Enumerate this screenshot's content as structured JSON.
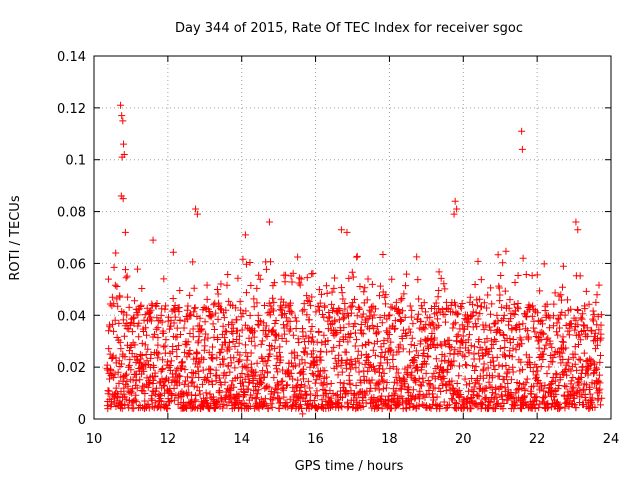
{
  "chart_data": {
    "type": "scatter",
    "title": "Day 344 of 2015, Rate Of TEC Index for receiver sgoc",
    "xlabel": "GPS time / hours",
    "ylabel": "ROTI / TECUs",
    "xlim": [
      10,
      24
    ],
    "ylim": [
      0,
      0.14
    ],
    "grid": true,
    "marker": "+",
    "x_ticks": [
      10,
      12,
      14,
      16,
      18,
      20,
      22,
      24
    ],
    "x_tick_labels": [
      "10",
      "12",
      "14",
      "16",
      "18",
      "20",
      "22",
      "24"
    ],
    "y_ticks": [
      0,
      0.02,
      0.04,
      0.06,
      0.08,
      0.1,
      0.12,
      0.14
    ],
    "y_tick_labels": [
      "0",
      "0.02",
      "0.04",
      "0.06",
      "0.08",
      "0.1",
      "0.12",
      "0.14"
    ],
    "series": [
      {
        "name": "ROTI",
        "color": "#ff0000",
        "x_range": [
          10.35,
          23.75
        ],
        "typical_range": [
          0.004,
          0.045
        ],
        "notable_peaks": [
          {
            "x": 10.72,
            "y": 0.121
          },
          {
            "x": 10.75,
            "y": 0.117
          },
          {
            "x": 10.78,
            "y": 0.115
          },
          {
            "x": 10.8,
            "y": 0.106
          },
          {
            "x": 10.76,
            "y": 0.101
          },
          {
            "x": 10.82,
            "y": 0.102
          },
          {
            "x": 10.74,
            "y": 0.086
          },
          {
            "x": 10.79,
            "y": 0.085
          },
          {
            "x": 10.85,
            "y": 0.072
          },
          {
            "x": 11.6,
            "y": 0.069
          },
          {
            "x": 12.75,
            "y": 0.081
          },
          {
            "x": 12.8,
            "y": 0.079
          },
          {
            "x": 14.1,
            "y": 0.071
          },
          {
            "x": 14.75,
            "y": 0.076
          },
          {
            "x": 16.7,
            "y": 0.073
          },
          {
            "x": 16.85,
            "y": 0.072
          },
          {
            "x": 19.78,
            "y": 0.084
          },
          {
            "x": 19.82,
            "y": 0.081
          },
          {
            "x": 19.75,
            "y": 0.079
          },
          {
            "x": 21.58,
            "y": 0.111
          },
          {
            "x": 21.6,
            "y": 0.104
          },
          {
            "x": 21.62,
            "y": 0.062
          },
          {
            "x": 23.05,
            "y": 0.076
          },
          {
            "x": 23.1,
            "y": 0.073
          },
          {
            "x": 15.65,
            "y": 0.002
          }
        ]
      }
    ]
  }
}
